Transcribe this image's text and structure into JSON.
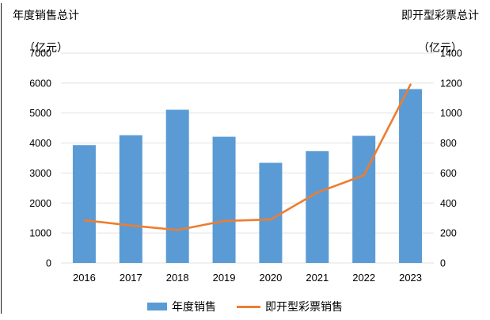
{
  "figure": {
    "left_axis_title_line1": "年度销售总计",
    "left_axis_title_line2": "（亿元）",
    "right_axis_title_line1": "即开型彩票总计",
    "right_axis_title_line2": "（亿元）"
  },
  "chart_data": {
    "type": "bar+line combo (dual axis)",
    "categories": [
      "2016",
      "2017",
      "2018",
      "2019",
      "2020",
      "2021",
      "2022",
      "2023"
    ],
    "series": [
      {
        "name": "年度销售",
        "type": "bar",
        "axis": "left",
        "color": "#5B9BD5",
        "values": [
          3930,
          4260,
          5110,
          4210,
          3340,
          3730,
          4240,
          5800
        ]
      },
      {
        "name": "即开型彩票销售",
        "type": "line",
        "axis": "right",
        "color": "#ED7D31",
        "values": [
          285,
          250,
          220,
          280,
          290,
          470,
          585,
          1190
        ]
      }
    ],
    "left_axis": {
      "title": "年度销售总计（亿元）",
      "min": 0,
      "max": 7000,
      "step": 1000,
      "ticks": [
        "0",
        "1000",
        "2000",
        "3000",
        "4000",
        "5000",
        "6000",
        "7000"
      ]
    },
    "right_axis": {
      "title": "即开型彩票总计（亿元）",
      "min": 0,
      "max": 1400,
      "step": 200,
      "ticks": [
        "0",
        "200",
        "400",
        "600",
        "800",
        "1000",
        "1200",
        "1400"
      ]
    },
    "grid": true,
    "grid_color": "#E2E2E2",
    "text_color": "#000000",
    "legend_position": "bottom"
  }
}
